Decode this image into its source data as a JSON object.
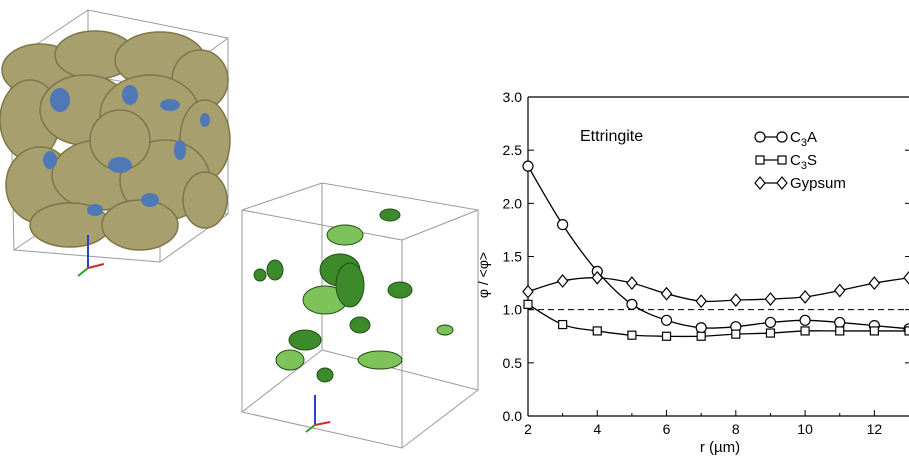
{
  "chart_data": {
    "type": "line",
    "title": "Ettringite",
    "xlabel": "r (µm)",
    "ylabel": "φ / <φ>",
    "xlim": [
      2,
      13
    ],
    "ylim": [
      0,
      3
    ],
    "x_ticks": [
      "2",
      "4",
      "6",
      "8",
      "10",
      "12"
    ],
    "y_ticks": [
      "0.0",
      "0.5",
      "1.0",
      "1.5",
      "2.0",
      "2.5",
      "3.0"
    ],
    "reference_line": {
      "y": 1.0,
      "style": "dashed"
    },
    "legend_position": "top-right",
    "grid": false,
    "series": [
      {
        "name": "C3A",
        "label_main": "C",
        "label_sub": "3",
        "label_tail": "A",
        "marker": "circle",
        "x": [
          2,
          3,
          4,
          5,
          6,
          7,
          8,
          9,
          10,
          11,
          12,
          13
        ],
        "values": [
          2.35,
          1.8,
          1.36,
          1.05,
          0.9,
          0.83,
          0.84,
          0.88,
          0.9,
          0.88,
          0.85,
          0.82
        ]
      },
      {
        "name": "C3S",
        "label_main": "C",
        "label_sub": "3",
        "label_tail": "S",
        "marker": "square",
        "x": [
          2,
          3,
          4,
          5,
          6,
          7,
          8,
          9,
          10,
          11,
          12,
          13
        ],
        "values": [
          1.05,
          0.86,
          0.8,
          0.76,
          0.75,
          0.75,
          0.77,
          0.78,
          0.8,
          0.8,
          0.8,
          0.8
        ]
      },
      {
        "name": "Gypsum",
        "label_main": "Gypsum",
        "label_sub": "",
        "label_tail": "",
        "marker": "diamond",
        "x": [
          2,
          3,
          4,
          5,
          6,
          7,
          8,
          9,
          10,
          11,
          12,
          13
        ],
        "values": [
          1.17,
          1.27,
          1.3,
          1.25,
          1.15,
          1.08,
          1.09,
          1.1,
          1.12,
          1.18,
          1.25,
          1.3
        ]
      }
    ]
  },
  "renders": {
    "cement": {
      "colors": {
        "solid": "#a89f6e",
        "shade": "#7e7648",
        "pores": "#4f78b6"
      }
    },
    "ettringite": {
      "colors": {
        "solid": "#3d8a2a",
        "light": "#7ec35a",
        "dark": "#214f16"
      }
    }
  }
}
